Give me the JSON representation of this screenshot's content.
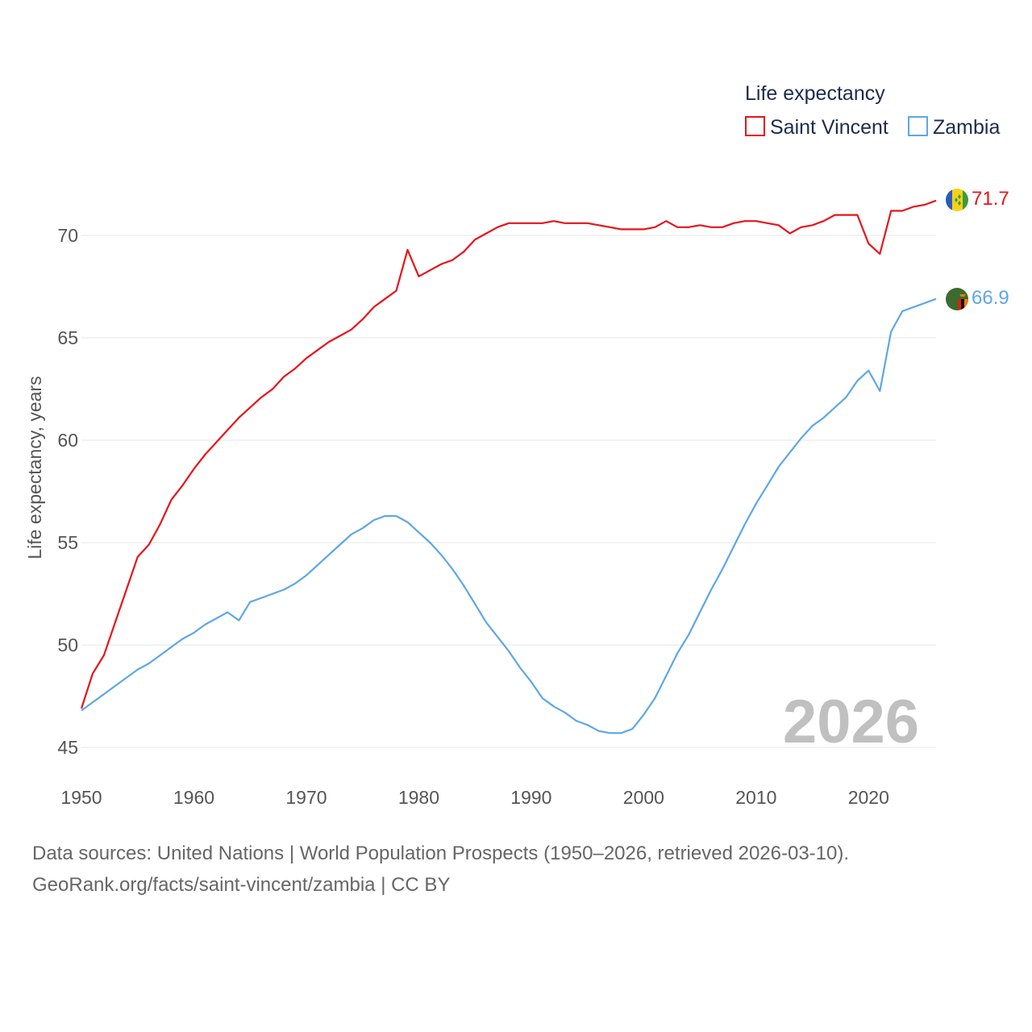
{
  "chart_data": {
    "type": "line",
    "legend_title": "Life expectancy",
    "ylabel": "Life expectancy, years",
    "xlabel": "",
    "xlim": [
      1950,
      2026
    ],
    "ylim": [
      45,
      72
    ],
    "x_ticks": [
      "1950",
      "1960",
      "1970",
      "1980",
      "1990",
      "2000",
      "2010",
      "2020"
    ],
    "y_ticks": [
      "45",
      "50",
      "55",
      "60",
      "65",
      "70"
    ],
    "year_overlay": "2026",
    "legend_position": "top-right",
    "series": [
      {
        "name": "Saint Vincent",
        "color": "#e8131a",
        "end_label": "71.7",
        "flag": "saint-vincent-flag-icon",
        "x": [
          1950,
          1951,
          1952,
          1953,
          1954,
          1955,
          1956,
          1957,
          1958,
          1959,
          1960,
          1961,
          1962,
          1963,
          1964,
          1965,
          1966,
          1967,
          1968,
          1969,
          1970,
          1971,
          1972,
          1973,
          1974,
          1975,
          1976,
          1977,
          1978,
          1979,
          1980,
          1981,
          1982,
          1983,
          1984,
          1985,
          1986,
          1987,
          1988,
          1989,
          1990,
          1991,
          1992,
          1993,
          1994,
          1995,
          1996,
          1997,
          1998,
          1999,
          2000,
          2001,
          2002,
          2003,
          2004,
          2005,
          2006,
          2007,
          2008,
          2009,
          2010,
          2011,
          2012,
          2013,
          2014,
          2015,
          2016,
          2017,
          2018,
          2019,
          2020,
          2021,
          2022,
          2023,
          2024,
          2025,
          2026
        ],
        "values": [
          46.9,
          48.6,
          49.5,
          51.1,
          52.7,
          54.3,
          54.9,
          55.9,
          57.1,
          57.8,
          58.6,
          59.3,
          59.9,
          60.5,
          61.1,
          61.6,
          62.1,
          62.5,
          63.1,
          63.5,
          64.0,
          64.4,
          64.8,
          65.1,
          65.4,
          65.9,
          66.5,
          66.9,
          67.3,
          69.3,
          68.0,
          68.3,
          68.6,
          68.8,
          69.2,
          69.8,
          70.1,
          70.4,
          70.6,
          70.6,
          70.6,
          70.6,
          70.7,
          70.6,
          70.6,
          70.6,
          70.5,
          70.4,
          70.3,
          70.3,
          70.3,
          70.4,
          70.7,
          70.4,
          70.4,
          70.5,
          70.4,
          70.4,
          70.6,
          70.7,
          70.7,
          70.6,
          70.5,
          70.1,
          70.4,
          70.5,
          70.7,
          71.0,
          71.0,
          71.0,
          69.6,
          69.1,
          71.2,
          71.2,
          71.4,
          71.5,
          71.7
        ]
      },
      {
        "name": "Zambia",
        "color": "#5ea7e6",
        "end_label": "66.9",
        "flag": "zambia-flag-icon",
        "x": [
          1950,
          1951,
          1952,
          1953,
          1954,
          1955,
          1956,
          1957,
          1958,
          1959,
          1960,
          1961,
          1962,
          1963,
          1964,
          1965,
          1966,
          1967,
          1968,
          1969,
          1970,
          1971,
          1972,
          1973,
          1974,
          1975,
          1976,
          1977,
          1978,
          1979,
          1980,
          1981,
          1982,
          1983,
          1984,
          1985,
          1986,
          1987,
          1988,
          1989,
          1990,
          1991,
          1992,
          1993,
          1994,
          1995,
          1996,
          1997,
          1998,
          1999,
          2000,
          2001,
          2002,
          2003,
          2004,
          2005,
          2006,
          2007,
          2008,
          2009,
          2010,
          2011,
          2012,
          2013,
          2014,
          2015,
          2016,
          2017,
          2018,
          2019,
          2020,
          2021,
          2022,
          2023,
          2024,
          2025,
          2026
        ],
        "values": [
          46.8,
          47.2,
          47.6,
          48.0,
          48.4,
          48.8,
          49.1,
          49.5,
          49.9,
          50.3,
          50.6,
          51.0,
          51.3,
          51.6,
          51.2,
          52.1,
          52.3,
          52.5,
          52.7,
          53.0,
          53.4,
          53.9,
          54.4,
          54.9,
          55.4,
          55.7,
          56.1,
          56.3,
          56.3,
          56.0,
          55.5,
          55.0,
          54.4,
          53.7,
          52.9,
          52.0,
          51.1,
          50.4,
          49.7,
          48.9,
          48.2,
          47.4,
          47.0,
          46.7,
          46.3,
          46.1,
          45.8,
          45.7,
          45.7,
          45.9,
          46.6,
          47.4,
          48.5,
          49.6,
          50.5,
          51.6,
          52.7,
          53.7,
          54.8,
          55.9,
          56.9,
          57.8,
          58.7,
          59.4,
          60.1,
          60.7,
          61.1,
          61.6,
          62.1,
          62.9,
          63.4,
          62.4,
          65.3,
          66.3,
          66.5,
          66.7,
          66.9
        ]
      }
    ]
  },
  "source": {
    "line1": "Data sources: United Nations | World Population Prospects (1950–2026, retrieved 2026-03-10).",
    "line2": "GeoRank.org/facts/saint-vincent/zambia | CC BY"
  }
}
